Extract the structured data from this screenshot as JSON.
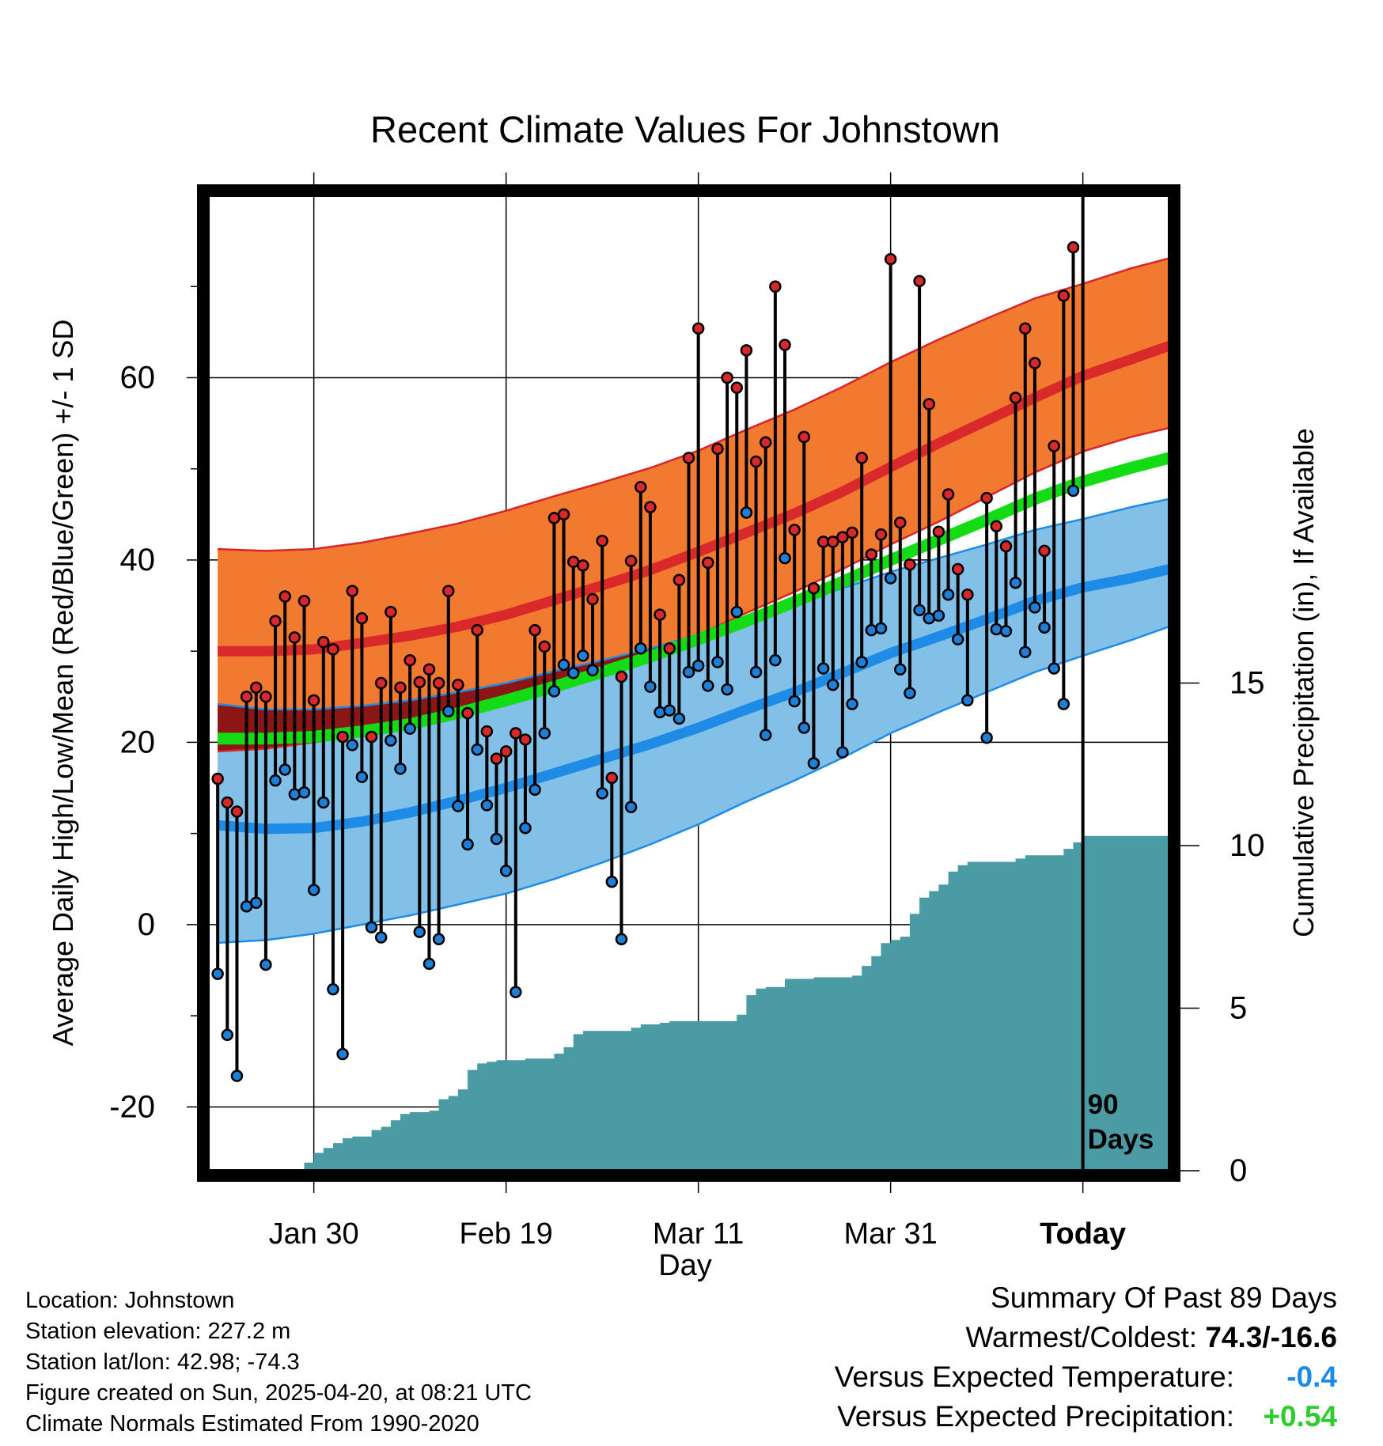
{
  "chart_data": {
    "type": "line",
    "title": "Recent Climate Values For Johnstown",
    "xlabel": "Day",
    "ylabel": "Average Daily High/Low/Mean (Red/Blue/Green) +/- 1 SD",
    "y2label": "Cumulative Precipitation (in), If Available",
    "x_tick_labels": [
      "Jan 30",
      "Feb 19",
      "Mar 11",
      "Mar 31",
      "Today"
    ],
    "x_tick_days": [
      10,
      30,
      50,
      70,
      90
    ],
    "x_range": [
      -1,
      99
    ],
    "ylim": [
      -27,
      80
    ],
    "y_ticks": [
      -20,
      0,
      20,
      40,
      60
    ],
    "y2lim": [
      0,
      30
    ],
    "y2_ticks": [
      0,
      5,
      10,
      15
    ],
    "grid": true,
    "today_marker": {
      "day": 90,
      "label_line1": "90",
      "label_line2": "Days"
    },
    "normals": {
      "days": [
        0,
        5,
        10,
        15,
        20,
        25,
        30,
        35,
        40,
        45,
        50,
        55,
        60,
        65,
        70,
        75,
        80,
        85,
        90,
        95,
        99
      ],
      "high_mean": [
        30.0,
        30.0,
        30.2,
        30.9,
        31.7,
        32.7,
        34.0,
        35.6,
        37.2,
        38.9,
        40.9,
        43.0,
        45.1,
        47.5,
        50.2,
        52.8,
        55.3,
        57.8,
        60.2,
        62.0,
        63.5
      ],
      "high_upper": [
        41.2,
        41.0,
        41.2,
        41.9,
        42.9,
        44.0,
        45.4,
        47.0,
        48.5,
        50.1,
        52.0,
        54.3,
        56.5,
        59.0,
        61.7,
        64.2,
        66.5,
        68.7,
        70.3,
        72.0,
        73.1
      ],
      "high_lower": [
        19.0,
        19.3,
        20.0,
        20.8,
        21.8,
        23.0,
        24.5,
        26.3,
        27.9,
        29.7,
        31.8,
        34.2,
        36.5,
        39.0,
        41.7,
        44.2,
        46.9,
        49.6,
        51.9,
        53.5,
        54.5
      ],
      "low_mean": [
        10.9,
        10.5,
        10.6,
        11.3,
        12.3,
        13.6,
        15.0,
        16.6,
        18.2,
        19.8,
        21.6,
        23.6,
        25.5,
        27.6,
        29.8,
        31.6,
        33.5,
        35.5,
        37.0,
        38.0,
        39.0
      ],
      "low_upper": [
        24.2,
        23.6,
        23.6,
        24.0,
        24.6,
        25.5,
        26.5,
        27.8,
        29.0,
        30.3,
        31.8,
        33.6,
        35.2,
        36.9,
        38.7,
        40.2,
        41.7,
        43.3,
        44.5,
        45.8,
        46.7
      ],
      "low_lower": [
        -2.0,
        -1.7,
        -1.0,
        0.0,
        1.0,
        2.2,
        3.4,
        5.0,
        6.8,
        8.8,
        11.0,
        13.5,
        15.8,
        18.3,
        21.0,
        23.3,
        25.5,
        27.7,
        29.5,
        31.2,
        32.7
      ],
      "avg_mean": [
        20.4,
        20.4,
        20.6,
        21.2,
        22.0,
        23.2,
        24.6,
        26.1,
        27.7,
        29.4,
        31.3,
        33.3,
        35.4,
        37.6,
        40.0,
        42.2,
        44.4,
        46.7,
        48.6,
        50.1,
        51.2
      ]
    },
    "daily_highs": [
      16,
      13.4,
      12.4,
      25,
      26,
      25,
      33.3,
      36,
      31.5,
      35.5,
      24.6,
      31,
      30.2,
      20.6,
      36.6,
      33.6,
      20.6,
      26.5,
      34.3,
      26,
      29,
      26.6,
      28,
      26.5,
      36.6,
      26.3,
      23.2,
      32.3,
      21.2,
      18.2,
      19,
      21,
      20.3,
      32.3,
      30.5,
      44.6,
      45,
      39.8,
      39.4,
      35.7,
      42.1,
      16.1,
      27.2,
      39.9,
      48,
      45.8,
      34,
      30.3,
      37.8,
      51.2,
      65.4,
      39.7,
      52.2,
      60,
      58.9,
      63,
      50.8,
      52.9,
      70,
      63.6,
      43.3,
      53.5,
      36.9,
      42,
      42,
      42.5,
      43,
      51.2,
      40.6,
      42.8,
      73,
      44.1,
      39.5,
      70.6,
      57.1,
      43.1,
      47.2,
      39,
      36.2,
      null,
      46.8,
      43.7,
      41.5,
      57.8,
      65.4,
      61.6,
      41,
      52.5,
      69,
      74.3
    ],
    "daily_lows": [
      -5.4,
      -12.1,
      -16.6,
      2,
      2.4,
      -4.4,
      15.8,
      17,
      14.3,
      14.5,
      3.8,
      13.4,
      -7.1,
      -14.2,
      19.7,
      16.2,
      -0.3,
      -1.4,
      20.2,
      17.1,
      21.5,
      -0.8,
      -4.3,
      -1.6,
      23.4,
      13,
      8.8,
      19.2,
      13.1,
      9.4,
      5.9,
      -7.4,
      10.6,
      14.8,
      21,
      25.6,
      28.5,
      27.6,
      29.5,
      27.9,
      14.4,
      4.7,
      -1.6,
      12.9,
      30.3,
      26.1,
      23.3,
      23.5,
      22.6,
      27.7,
      28.4,
      26.2,
      28.8,
      25.8,
      34.3,
      45.2,
      27.7,
      20.8,
      29,
      40.2,
      24.5,
      21.6,
      17.7,
      28.1,
      26.3,
      18.9,
      24.2,
      28.8,
      32.3,
      32.5,
      38,
      28,
      25.4,
      34.5,
      33.6,
      33.9,
      36.2,
      31.3,
      24.6,
      null,
      20.5,
      32.4,
      32.2,
      37.5,
      29.9,
      34.8,
      32.6,
      28.1,
      24.2,
      47.6
    ],
    "cumulative_precip": {
      "days": [
        0,
        8,
        9,
        10,
        11,
        12,
        13,
        14,
        15,
        16,
        17,
        18,
        19,
        20,
        21,
        22,
        23,
        24,
        25,
        26,
        27,
        28,
        29,
        32,
        35,
        36,
        37,
        38,
        42,
        43,
        44,
        46,
        47,
        50,
        54,
        55,
        56,
        57,
        59,
        60,
        62,
        66,
        67,
        68,
        69,
        70,
        71,
        72,
        73,
        74,
        75,
        76,
        77,
        78,
        82,
        83,
        84,
        88,
        89,
        90,
        99
      ],
      "values": [
        0,
        0,
        0.25,
        0.55,
        0.7,
        0.85,
        1.0,
        1.05,
        1.05,
        1.25,
        1.35,
        1.55,
        1.75,
        1.8,
        1.8,
        1.85,
        2.2,
        2.3,
        2.5,
        3.1,
        3.3,
        3.35,
        3.4,
        3.45,
        3.6,
        3.8,
        4.2,
        4.3,
        4.3,
        4.4,
        4.5,
        4.55,
        4.6,
        4.6,
        4.8,
        5.4,
        5.6,
        5.65,
        5.9,
        5.9,
        5.95,
        6.0,
        6.3,
        6.6,
        7.0,
        7.1,
        7.2,
        7.9,
        8.4,
        8.6,
        8.8,
        9.2,
        9.4,
        9.5,
        9.5,
        9.6,
        9.7,
        9.9,
        10.1,
        10.3,
        10.3
      ]
    },
    "colors": {
      "high_band": "#f27a30",
      "high_line": "#d9292b",
      "high_band_edge": "#d8252a",
      "low_band": "#82c0e8",
      "low_line": "#1e8ce6",
      "low_band_edge": "#1e8ce6",
      "avg_line": "#14dc14",
      "overlap": "#8c1515",
      "precip": "#4a9ba4",
      "high_marker": "#d9282a",
      "low_marker": "#1f7ed6"
    }
  },
  "metadata": {
    "location": "Location: Johnstown",
    "elevation": "Station elevation: 227.2 m",
    "latlon": "Station lat/lon: 42.98; -74.3",
    "created": "Figure created on Sun, 2025-04-20, at 08:21 UTC",
    "normals": "Climate Normals Estimated From 1990-2020"
  },
  "summary": {
    "title": "Summary Of Past 89 Days",
    "warmest_label": "Warmest/Coldest: ",
    "warmest_value": "74.3/-16.6",
    "temp_label": "Versus Expected Temperature:",
    "temp_value": "-0.4",
    "precip_label": "Versus Expected Precipitation:",
    "precip_value": "+0.54"
  }
}
